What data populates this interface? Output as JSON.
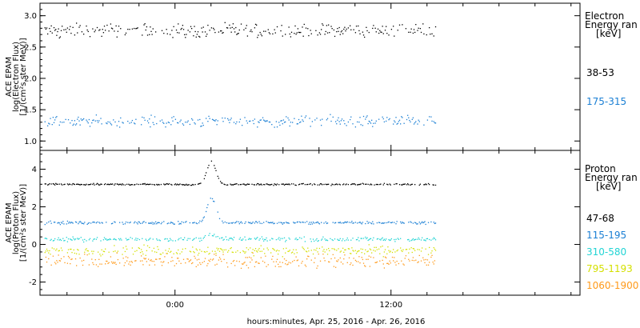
{
  "footer": {
    "xlabel": "hours:minutes, Apr. 25, 2016 - Apr. 26, 2016"
  },
  "chart_data": [
    {
      "type": "scatter",
      "panel": "electron",
      "ylabel_lines": [
        "ACE EPAM",
        "log(Electron Flux)",
        "[1/(cm²s ster MeV)]"
      ],
      "ylim": [
        0.85,
        3.2
      ],
      "yticks": [
        1.0,
        1.5,
        2.0,
        2.5,
        3.0
      ],
      "ytick_labels": [
        "1.0",
        "1.5",
        "2.0",
        "2.5",
        "3.0"
      ],
      "legend_header": [
        "Electron",
        "Energy ran",
        "[keV]"
      ],
      "series": [
        {
          "name": "38-53",
          "color": "#000000",
          "base": 2.77,
          "spread": 0.1,
          "spikes": []
        },
        {
          "name": "175-315",
          "color": "#1a7fd4",
          "base": 1.32,
          "spread": 0.08,
          "spikes": []
        }
      ]
    },
    {
      "type": "scatter",
      "panel": "proton",
      "ylabel_lines": [
        "ACE EPAM",
        "log(Proton Flux)",
        "[1/(cm²s ster MeV)]"
      ],
      "ylim": [
        -2.7,
        5.0
      ],
      "yticks": [
        -2,
        0,
        2,
        4
      ],
      "ytick_labels": [
        "-2",
        "0",
        "2",
        "4"
      ],
      "legend_header": [
        "Proton",
        "Energy ran",
        "[keV]"
      ],
      "series": [
        {
          "name": "47-68",
          "color": "#000000",
          "base": 3.22,
          "spread": 0.04,
          "spikes": [
            [
              2.0,
              1.2
            ]
          ]
        },
        {
          "name": "115-195",
          "color": "#1a7fd4",
          "base": 1.18,
          "spread": 0.07,
          "spikes": [
            [
              2.0,
              1.3
            ]
          ]
        },
        {
          "name": "310-580",
          "color": "#22d4d4",
          "base": 0.3,
          "spread": 0.1,
          "spikes": [
            [
              2.0,
              0.3
            ]
          ]
        },
        {
          "name": "795-1193",
          "color": "#d4e000",
          "base": -0.3,
          "spread": 0.22,
          "spikes": []
        },
        {
          "name": "1060-1900",
          "color": "#ff9a1a",
          "base": -0.85,
          "spread": 0.32,
          "spikes": []
        }
      ]
    }
  ],
  "x_axis": {
    "range_hours": [
      -7.5,
      22.5
    ],
    "data_end_hours": 14.5,
    "ticks": [
      0,
      12
    ],
    "tick_labels": [
      "0:00",
      "12:00"
    ]
  }
}
